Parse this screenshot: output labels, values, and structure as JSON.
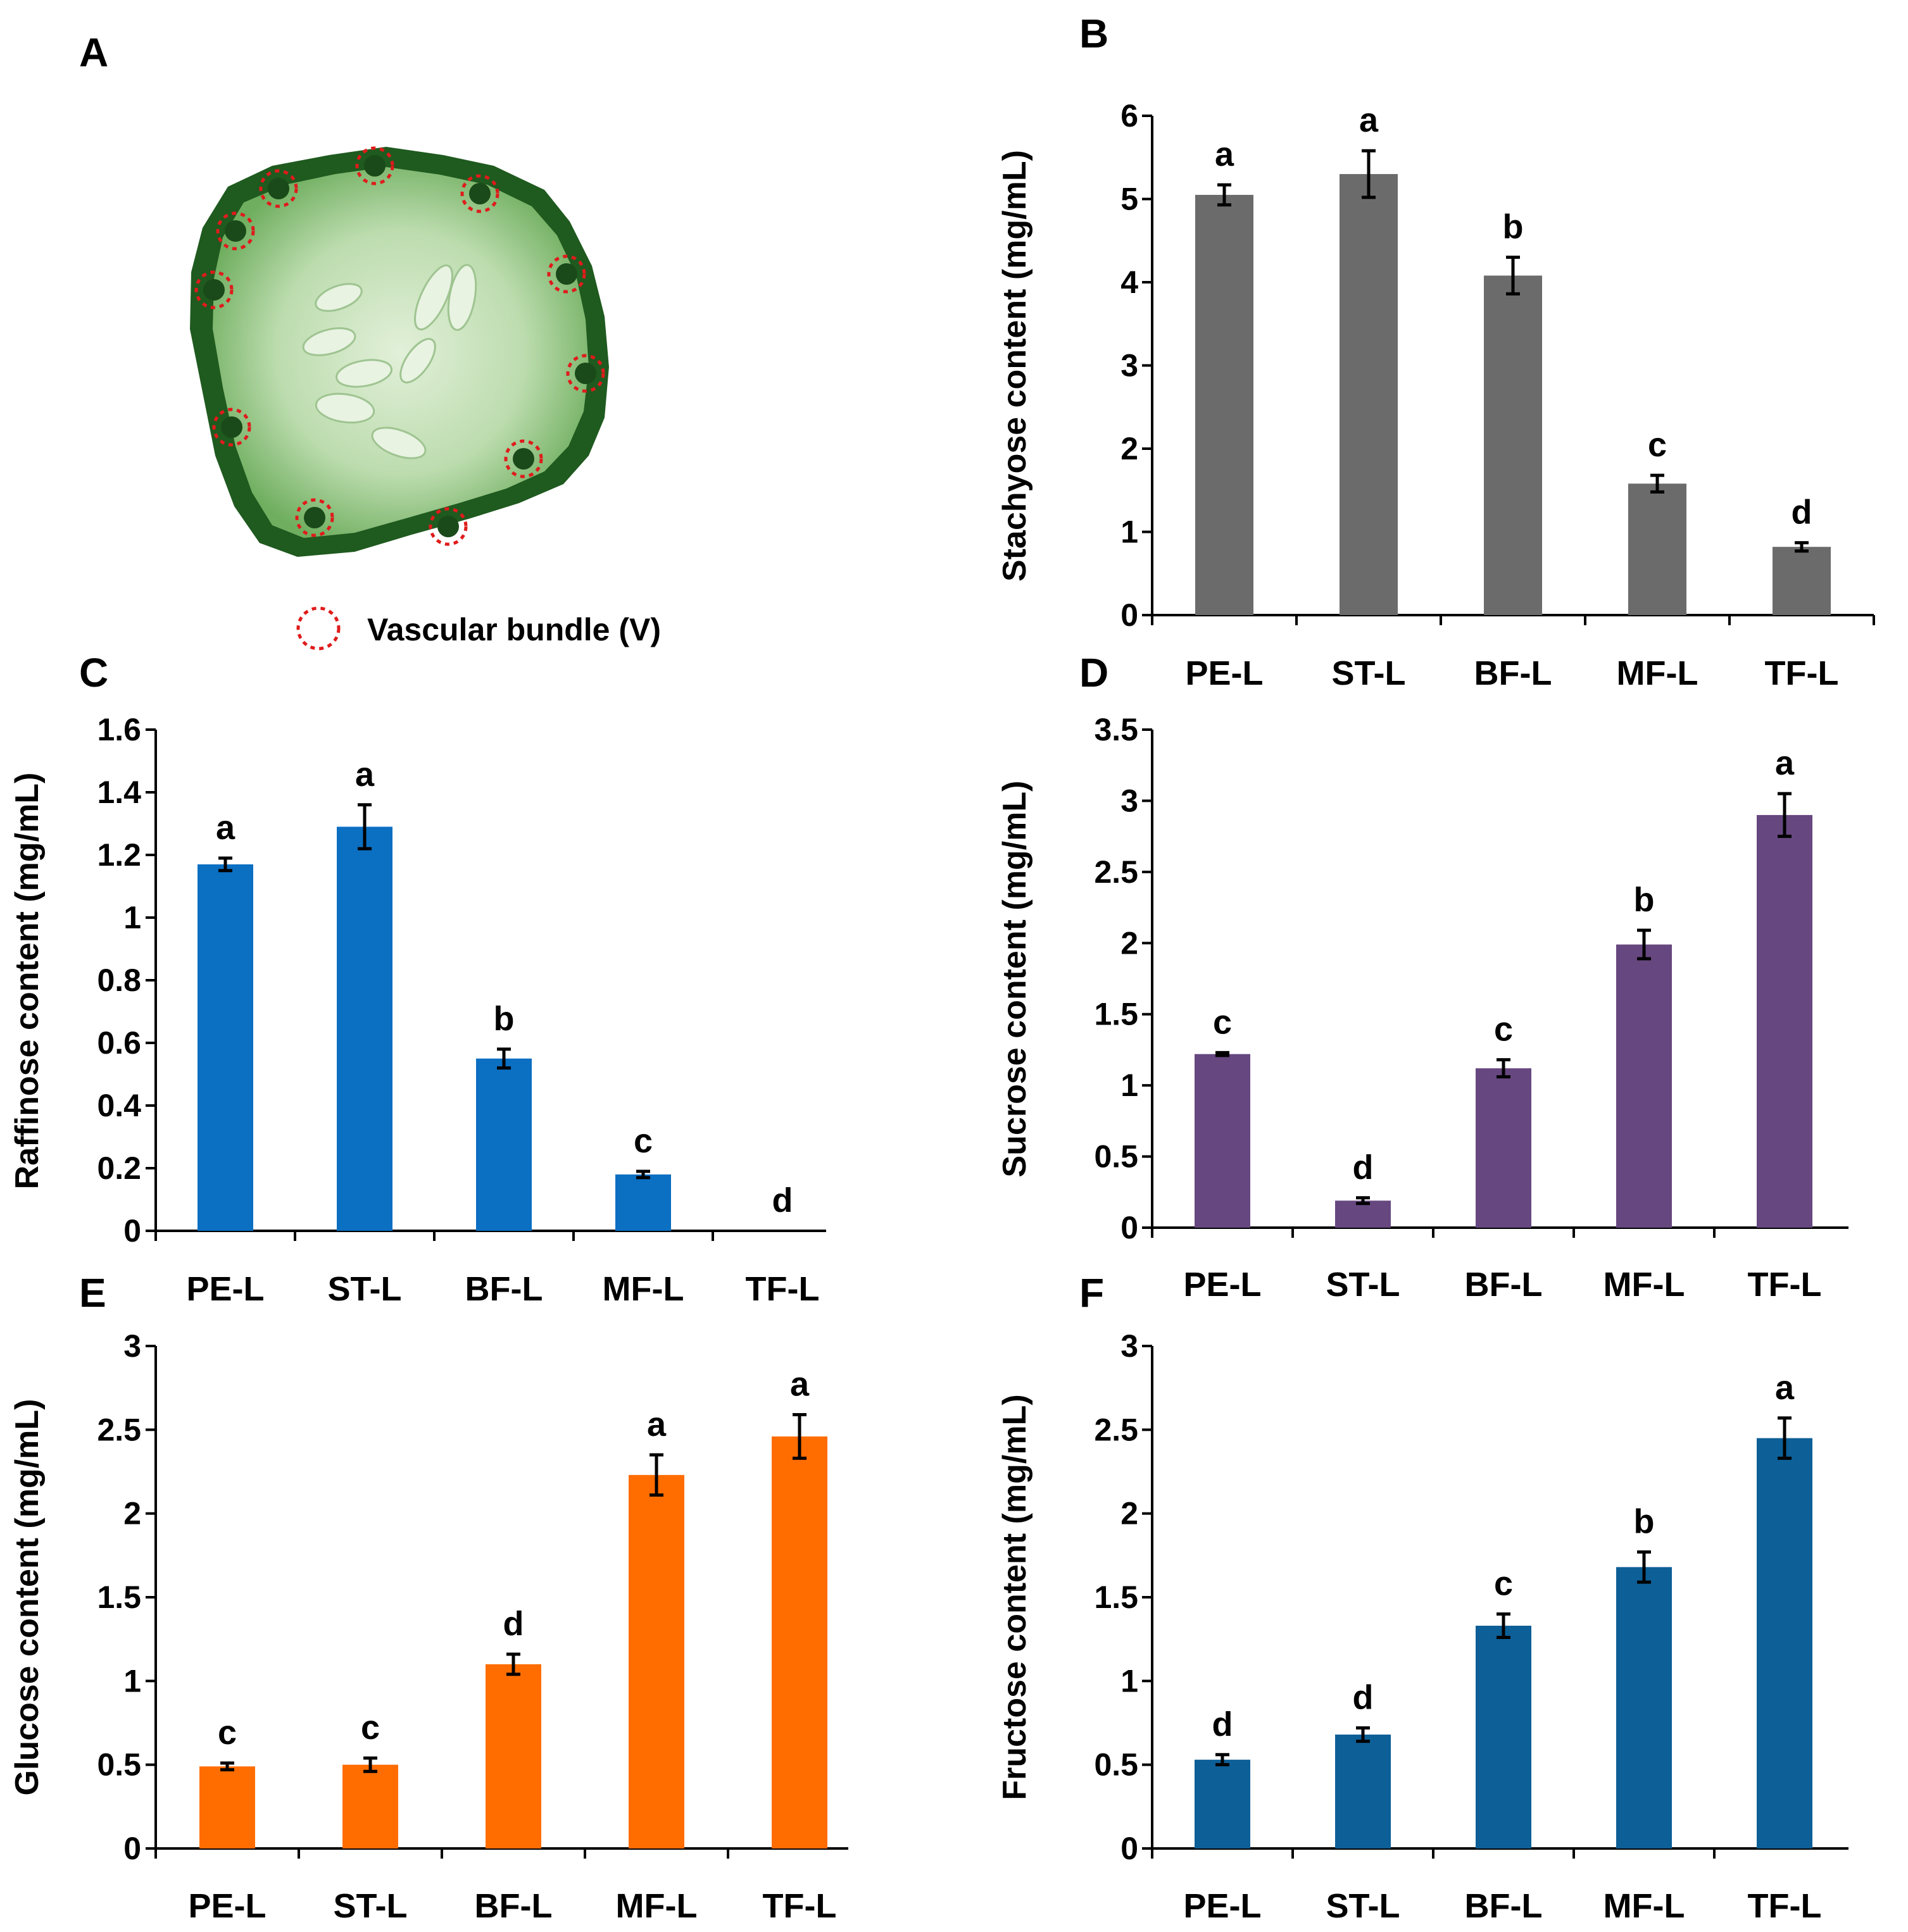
{
  "panel_a": {
    "letter": "A",
    "legend_label": "Vascular bundle (V)",
    "colors": {
      "rind": "#1f5a1f",
      "flesh": "#b9dcae",
      "seed": "#e6f2df",
      "marker": "#e01b1b"
    }
  },
  "chart_data": [
    {
      "id": "B",
      "type": "bar",
      "panel_letter": "B",
      "categories": [
        "PE-L",
        "ST-L",
        "BF-L",
        "MF-L",
        "TF-L"
      ],
      "values": [
        5.05,
        5.3,
        4.08,
        1.58,
        0.82
      ],
      "errors": [
        0.12,
        0.28,
        0.22,
        0.1,
        0.05
      ],
      "letters": [
        "a",
        "a",
        "b",
        "c",
        "d"
      ],
      "ylabel": "Stachyose content (mg/mL)",
      "ylim": [
        0,
        6
      ],
      "yticks": [
        0,
        1,
        2,
        3,
        4,
        5,
        6
      ],
      "ytick_labels": [
        "0",
        "1",
        "2",
        "3",
        "4",
        "5",
        "6"
      ],
      "color": "#6b6b6b"
    },
    {
      "id": "C",
      "type": "bar",
      "panel_letter": "C",
      "categories": [
        "PE-L",
        "ST-L",
        "BF-L",
        "MF-L",
        "TF-L"
      ],
      "values": [
        1.17,
        1.29,
        0.55,
        0.18,
        0
      ],
      "errors": [
        0.02,
        0.07,
        0.03,
        0.01,
        0
      ],
      "letters": [
        "a",
        "a",
        "b",
        "c",
        "d"
      ],
      "ylabel": "Raffinose content (mg/mL)",
      "ylim": [
        0,
        1.6
      ],
      "yticks": [
        0,
        0.2,
        0.4,
        0.6,
        0.8,
        1.0,
        1.2,
        1.4,
        1.6
      ],
      "ytick_labels": [
        "0",
        "0.2",
        "0.4",
        "0.6",
        "0.8",
        "1",
        "1.2",
        "1.4",
        "1.6"
      ],
      "color": "#0b6fc2"
    },
    {
      "id": "D",
      "type": "bar",
      "panel_letter": "D",
      "categories": [
        "PE-L",
        "ST-L",
        "BF-L",
        "MF-L",
        "TF-L"
      ],
      "values": [
        1.22,
        0.19,
        1.12,
        1.99,
        2.9
      ],
      "errors": [
        0.01,
        0.02,
        0.06,
        0.1,
        0.15
      ],
      "letters": [
        "c",
        "d",
        "c",
        "b",
        "a"
      ],
      "ylabel": "Sucrose content (mg/mL)",
      "ylim": [
        0,
        3.5
      ],
      "yticks": [
        0,
        0.5,
        1.0,
        1.5,
        2.0,
        2.5,
        3.0,
        3.5
      ],
      "ytick_labels": [
        "0",
        "0.5",
        "1",
        "1.5",
        "2",
        "2.5",
        "3",
        "3.5"
      ],
      "color": "#66477f"
    },
    {
      "id": "E",
      "type": "bar",
      "panel_letter": "E",
      "categories": [
        "PE-L",
        "ST-L",
        "BF-L",
        "MF-L",
        "TF-L"
      ],
      "values": [
        0.49,
        0.5,
        1.1,
        2.23,
        2.46
      ],
      "errors": [
        0.02,
        0.04,
        0.06,
        0.12,
        0.13
      ],
      "letters": [
        "c",
        "c",
        "d",
        "a",
        "a"
      ],
      "ylabel": "Glucose content (mg/mL)",
      "ylim": [
        0,
        3
      ],
      "yticks": [
        0,
        0.5,
        1.0,
        1.5,
        2.0,
        2.5,
        3.0
      ],
      "ytick_labels": [
        "0",
        "0.5",
        "1",
        "1.5",
        "2",
        "2.5",
        "3"
      ],
      "color": "#ff6d00"
    },
    {
      "id": "F",
      "type": "bar",
      "panel_letter": "F",
      "categories": [
        "PE-L",
        "ST-L",
        "BF-L",
        "MF-L",
        "TF-L"
      ],
      "values": [
        0.53,
        0.68,
        1.33,
        1.68,
        2.45
      ],
      "errors": [
        0.03,
        0.04,
        0.07,
        0.09,
        0.12
      ],
      "letters": [
        "d",
        "d",
        "c",
        "b",
        "a"
      ],
      "ylabel": "Fructose content (mg/mL)",
      "ylim": [
        0,
        3
      ],
      "yticks": [
        0,
        0.5,
        1.0,
        1.5,
        2.0,
        2.5,
        3.0
      ],
      "ytick_labels": [
        "0",
        "0.5",
        "1",
        "1.5",
        "2",
        "2.5",
        "3"
      ],
      "color": "#0d5f97"
    }
  ]
}
